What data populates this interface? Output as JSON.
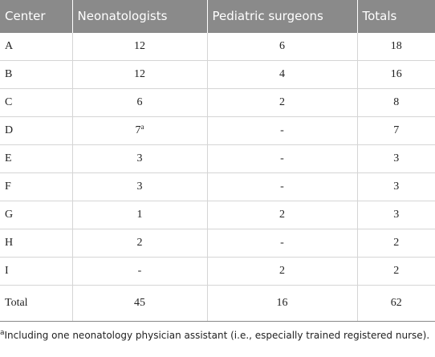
{
  "table": {
    "header": [
      "Center",
      "Neonatologists",
      "Pediatric surgeons",
      "Totals"
    ],
    "rows": [
      [
        "A",
        "12",
        "6",
        "18"
      ],
      [
        "B",
        "12",
        "4",
        "16"
      ],
      [
        "C",
        "6",
        "2",
        "8"
      ],
      [
        "D",
        {
          "text": "7",
          "sup": "a"
        },
        "-",
        "7"
      ],
      [
        "E",
        "3",
        "-",
        "3"
      ],
      [
        "F",
        "3",
        "-",
        "3"
      ],
      [
        "G",
        "1",
        "2",
        "3"
      ],
      [
        "H",
        "2",
        "-",
        "2"
      ],
      [
        "I",
        "-",
        "2",
        "2"
      ],
      [
        "Total",
        "45",
        "16",
        "62"
      ]
    ],
    "footnote": {
      "marker": "a",
      "text": "Including one neonatology physician assistant (i.e., especially trained registered nurse)."
    }
  }
}
